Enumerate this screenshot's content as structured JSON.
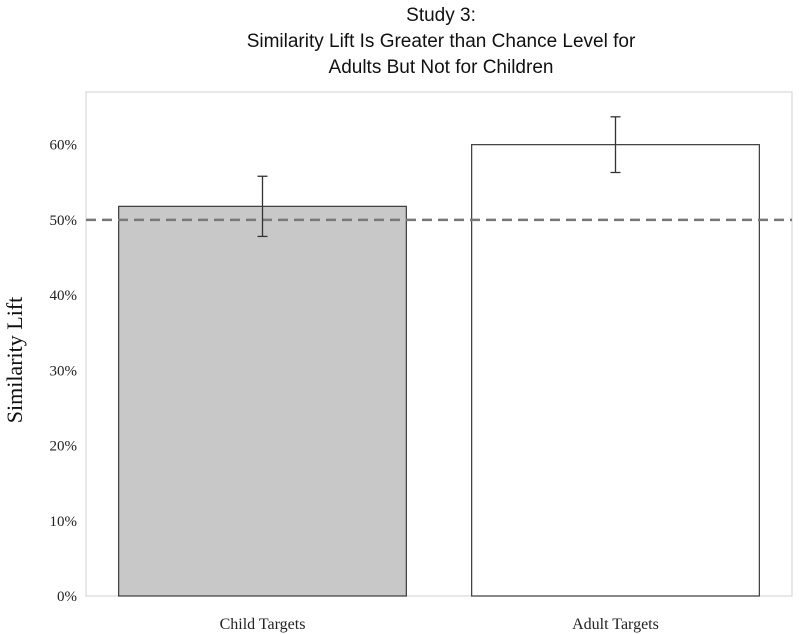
{
  "chart_data": {
    "type": "bar",
    "title_lines": [
      "Study 3:",
      "Similarity Lift Is Greater than Chance Level for",
      "Adults But Not for Children"
    ],
    "xlabel": "",
    "ylabel": "Similarity Lift",
    "categories": [
      "Child Targets",
      "Adult Targets"
    ],
    "values": [
      51.8,
      60.0
    ],
    "error_low": [
      47.8,
      56.3
    ],
    "error_high": [
      55.8,
      63.7
    ],
    "ylim": [
      0,
      67
    ],
    "y_ticks": [
      0,
      10,
      20,
      30,
      40,
      50,
      60
    ],
    "y_tick_labels": [
      "0%",
      "10%",
      "20%",
      "30%",
      "40%",
      "50%",
      "60%"
    ],
    "reference_line": 50,
    "grid": false,
    "colors": {
      "bars": [
        "#c8c8c8",
        "#ffffff"
      ],
      "bar_stroke": "#3a3a3a",
      "error_bar": "#333333",
      "reference_line": "#777777",
      "frame": "#d0d0d0"
    }
  }
}
